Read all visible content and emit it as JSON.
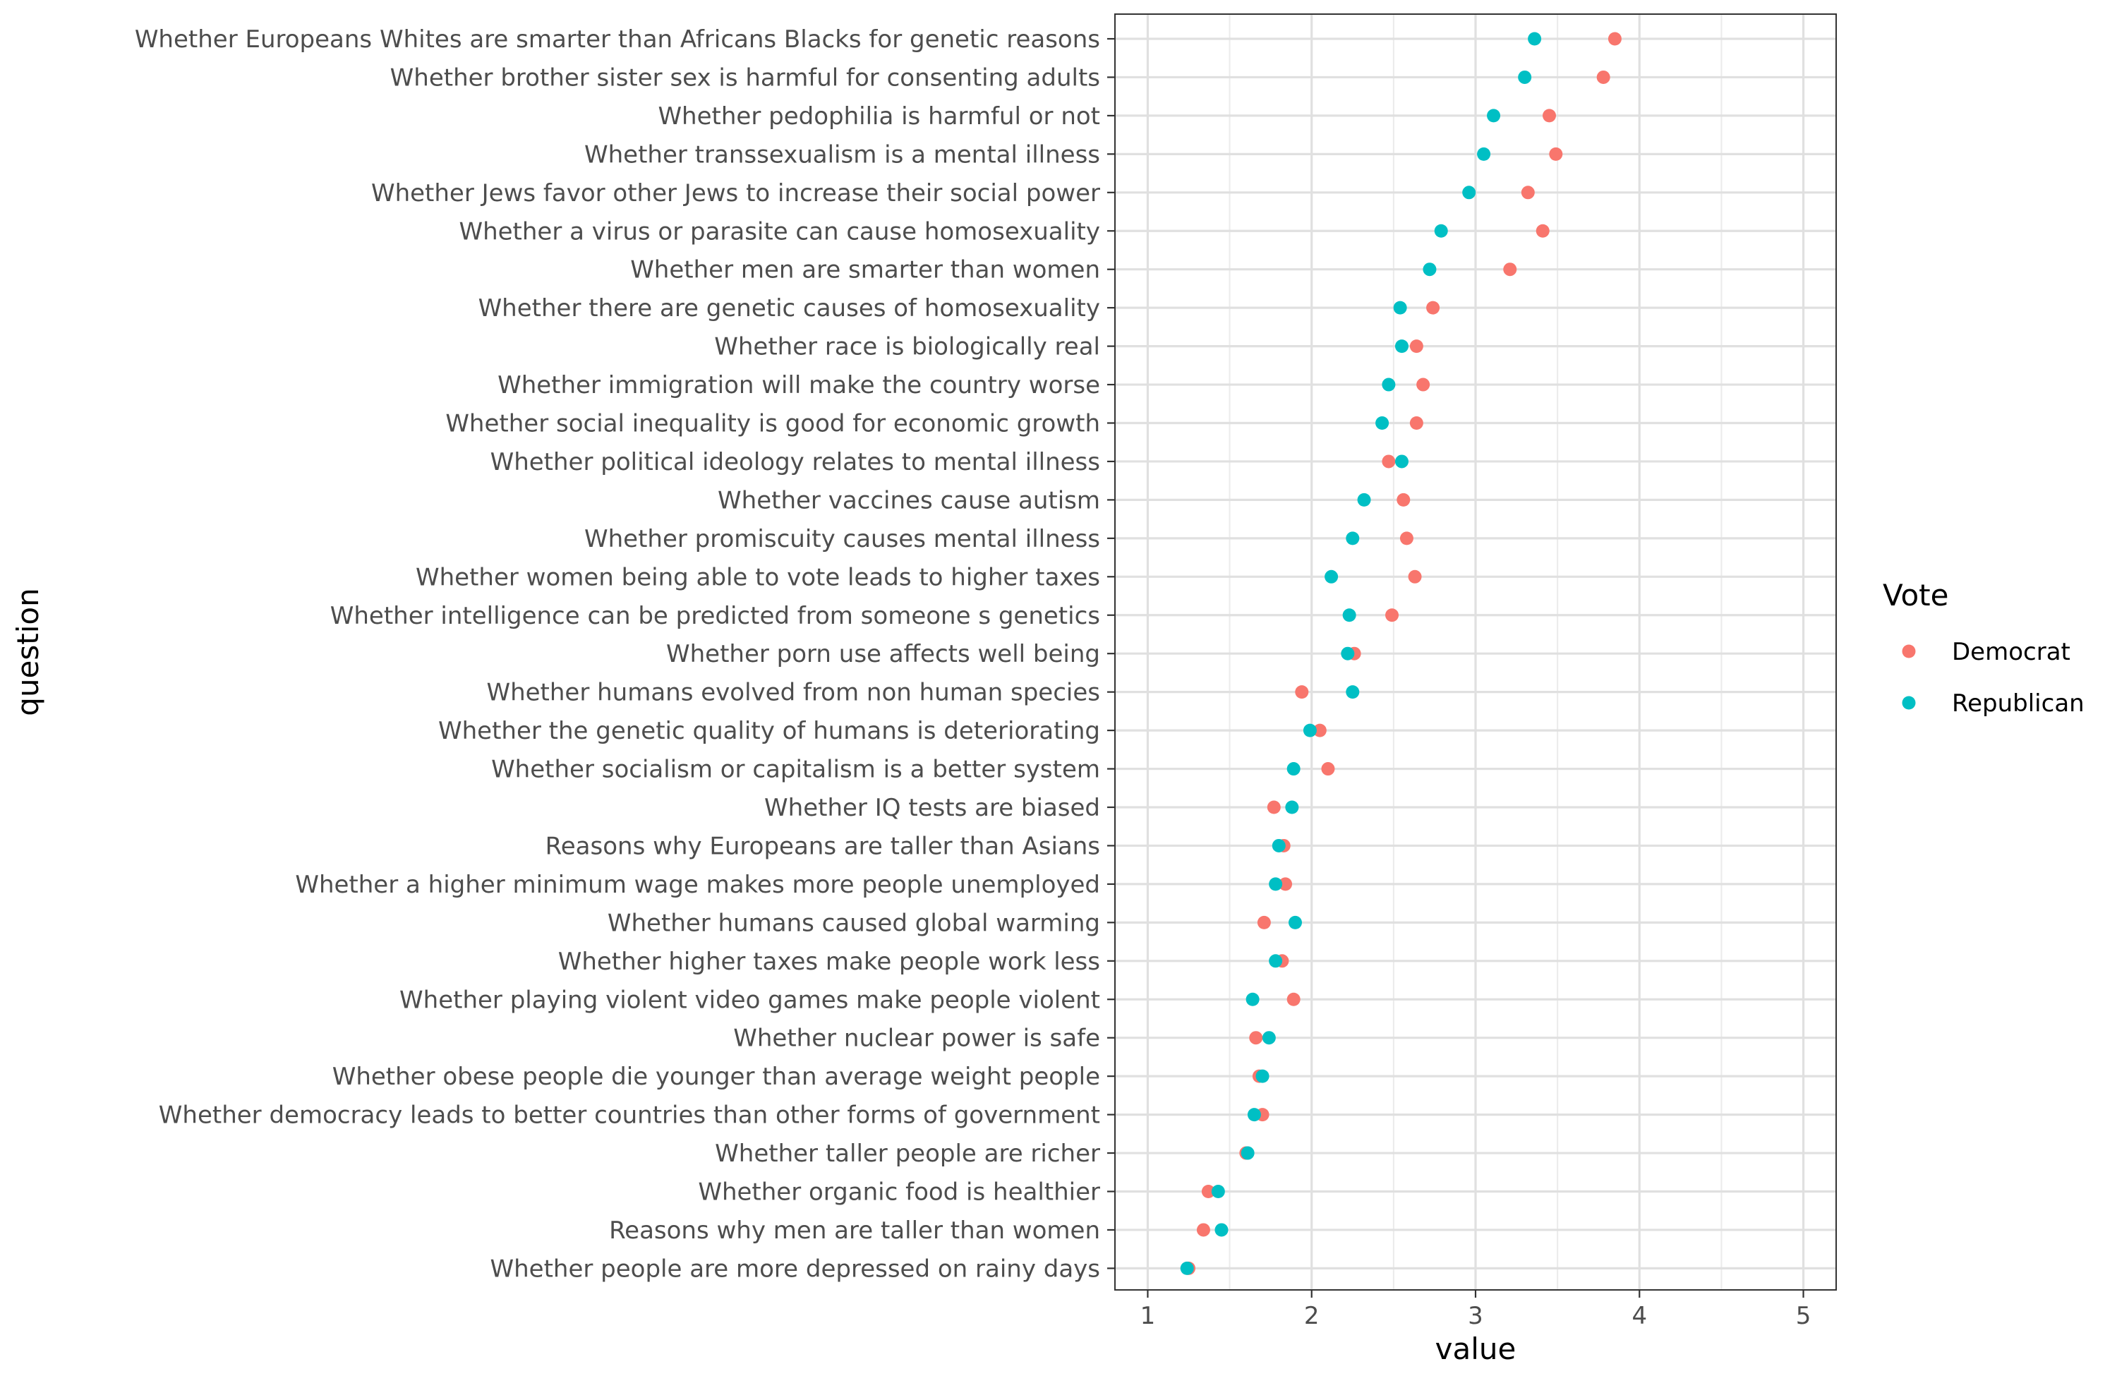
{
  "chart_data": {
    "type": "scatter",
    "xlabel": "value",
    "ylabel": "question",
    "xlim": [
      0.8,
      5.2
    ],
    "xticks": [
      1,
      2,
      3,
      4,
      5
    ],
    "grid": true,
    "legend": {
      "title": "Vote",
      "position": "right",
      "entries": [
        "Democrat",
        "Republican"
      ]
    },
    "colors": {
      "Democrat": "#f8766d",
      "Republican": "#00bfc4"
    },
    "categories": [
      "Whether Europeans Whites are smarter than Africans Blacks for genetic reasons",
      "Whether brother sister sex is harmful for consenting adults",
      "Whether pedophilia is harmful or not",
      "Whether transsexualism is a mental illness",
      "Whether Jews favor other Jews to increase their social power",
      "Whether a virus or parasite can cause homosexuality",
      "Whether men are smarter than women",
      "Whether there are genetic causes of homosexuality",
      "Whether race is biologically real",
      "Whether immigration will make the country worse",
      "Whether social inequality is good for economic growth",
      "Whether political ideology relates to mental illness",
      "Whether vaccines cause autism",
      "Whether promiscuity causes mental illness",
      "Whether women being able to vote leads to higher taxes",
      "Whether intelligence can be predicted from someone s genetics",
      "Whether porn use affects well being",
      "Whether humans evolved from non human species",
      "Whether the genetic quality of humans is deteriorating",
      "Whether socialism or capitalism is a better system",
      "Whether IQ tests are biased",
      "Reasons why Europeans are taller than Asians",
      "Whether a higher minimum wage makes more people unemployed",
      "Whether humans caused global warming",
      "Whether higher taxes make people work less",
      "Whether playing violent video games make people violent",
      "Whether nuclear power is safe",
      "Whether obese people die younger than average weight people",
      "Whether democracy leads to better countries than other forms of government",
      "Whether taller people are richer",
      "Whether organic food is healthier",
      "Reasons why men are taller than women",
      "Whether people are more depressed on rainy days"
    ],
    "series": [
      {
        "name": "Democrat",
        "values": [
          3.85,
          3.78,
          3.45,
          3.49,
          3.32,
          3.41,
          3.21,
          2.74,
          2.64,
          2.68,
          2.64,
          2.47,
          2.56,
          2.58,
          2.63,
          2.49,
          2.26,
          1.94,
          2.05,
          2.1,
          1.77,
          1.83,
          1.84,
          1.71,
          1.82,
          1.89,
          1.66,
          1.68,
          1.7,
          1.6,
          1.37,
          1.34,
          1.25
        ]
      },
      {
        "name": "Republican",
        "values": [
          3.36,
          3.3,
          3.11,
          3.05,
          2.96,
          2.79,
          2.72,
          2.54,
          2.55,
          2.47,
          2.43,
          2.55,
          2.32,
          2.25,
          2.12,
          2.23,
          2.22,
          2.25,
          1.99,
          1.89,
          1.88,
          1.8,
          1.78,
          1.9,
          1.78,
          1.64,
          1.74,
          1.7,
          1.65,
          1.61,
          1.43,
          1.45,
          1.24
        ]
      }
    ]
  }
}
